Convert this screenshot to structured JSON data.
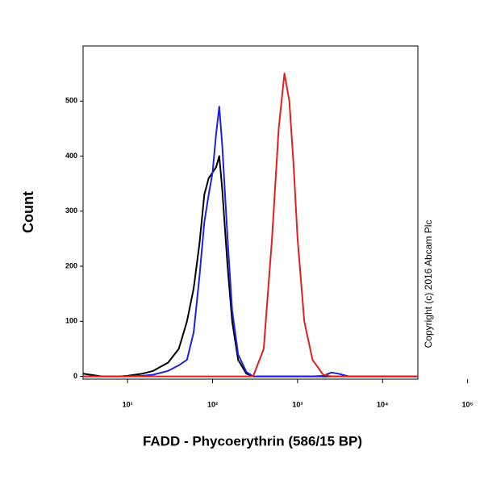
{
  "chart_data": {
    "type": "line",
    "x_label": "FADD - Phycoerythrin (586/15 BP)",
    "y_label": "Count",
    "note": "Copyright (c) 2016 Abcam Plc",
    "x_scale": "log",
    "xlim": [
      3,
      26000
    ],
    "xticks": [
      {
        "value": 10,
        "label": "10¹"
      },
      {
        "value": 100,
        "label": "10²"
      },
      {
        "value": 1000,
        "label": "10³"
      },
      {
        "value": 10000,
        "label": "10⁴"
      },
      {
        "value": 100000,
        "label": "10⁵"
      }
    ],
    "ylim": [
      -5,
      600
    ],
    "yticks": [
      0,
      100,
      200,
      300,
      400,
      500
    ],
    "x": [
      3,
      5,
      8,
      10,
      15,
      20,
      30,
      40,
      50,
      60,
      70,
      80,
      90,
      100,
      110,
      120,
      130,
      150,
      170,
      200,
      250,
      300,
      400,
      500,
      600,
      700,
      800,
      900,
      1000,
      1200,
      1500,
      2000,
      2500,
      3000,
      4000,
      10000,
      26000
    ],
    "series": [
      {
        "name": "black",
        "color": "#000000",
        "values": [
          5,
          0,
          0,
          1,
          5,
          10,
          25,
          50,
          100,
          160,
          240,
          330,
          360,
          370,
          380,
          400,
          340,
          200,
          100,
          30,
          5,
          0,
          0,
          0,
          0,
          0,
          0,
          0,
          0,
          0,
          0,
          0,
          0,
          0,
          0,
          0,
          0
        ]
      },
      {
        "name": "blue",
        "color": "#2020e0",
        "values": [
          0,
          0,
          0,
          0,
          1,
          3,
          10,
          20,
          30,
          80,
          180,
          280,
          330,
          370,
          440,
          490,
          420,
          250,
          120,
          40,
          8,
          0,
          0,
          0,
          0,
          0,
          0,
          0,
          0,
          0,
          0,
          1,
          7,
          5,
          0,
          0,
          0
        ]
      },
      {
        "name": "red",
        "color": "#e02020",
        "values": [
          0,
          0,
          0,
          0,
          0,
          0,
          0,
          0,
          0,
          0,
          0,
          0,
          0,
          0,
          0,
          0,
          0,
          0,
          0,
          0,
          0,
          0,
          50,
          250,
          450,
          550,
          500,
          380,
          250,
          100,
          30,
          3,
          0,
          0,
          0,
          0,
          0
        ]
      }
    ]
  }
}
